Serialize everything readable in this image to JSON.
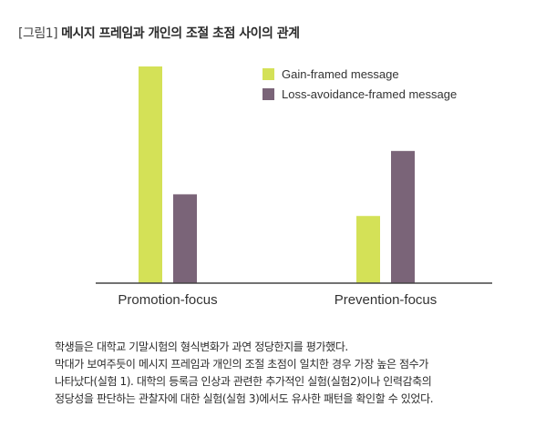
{
  "figure": {
    "tag": "[그림1]",
    "title": "메시지 프레임과 개인의 조절 초점 사이의 관계"
  },
  "colors": {
    "gain": "#d4e157",
    "loss": "#7a6478",
    "axis": "#444444"
  },
  "chart_data": {
    "type": "bar",
    "title": "메시지 프레임과 개인의 조절 초점 사이의 관계",
    "categories": [
      "Promotion-focus",
      "Prevention-focus"
    ],
    "series": [
      {
        "name": "Gain-framed message",
        "values": [
          100,
          31
        ]
      },
      {
        "name": "Loss-avoidance-framed message",
        "values": [
          41,
          61
        ]
      }
    ],
    "xlabel": "",
    "ylabel": "",
    "ylim": [
      0,
      100
    ],
    "grid": false,
    "legend": "top-right"
  },
  "caption": {
    "lines": [
      "학생들은 대학교 기말시험의 형식변화가 과연 정당한지를 평가했다.",
      "막대가 보여주듯이 메시지 프레임과 개인의 조절 초점이 일치한 경우 가장 높은 점수가",
      "나타났다(실험 1). 대학의 등록금 인상과 관련한 추가적인 실험(실험2)이나 인력감축의",
      "정당성을 판단하는 관찰자에 대한 실험(실험 3)에서도 유사한 패턴을 확인할 수 있었다."
    ]
  }
}
